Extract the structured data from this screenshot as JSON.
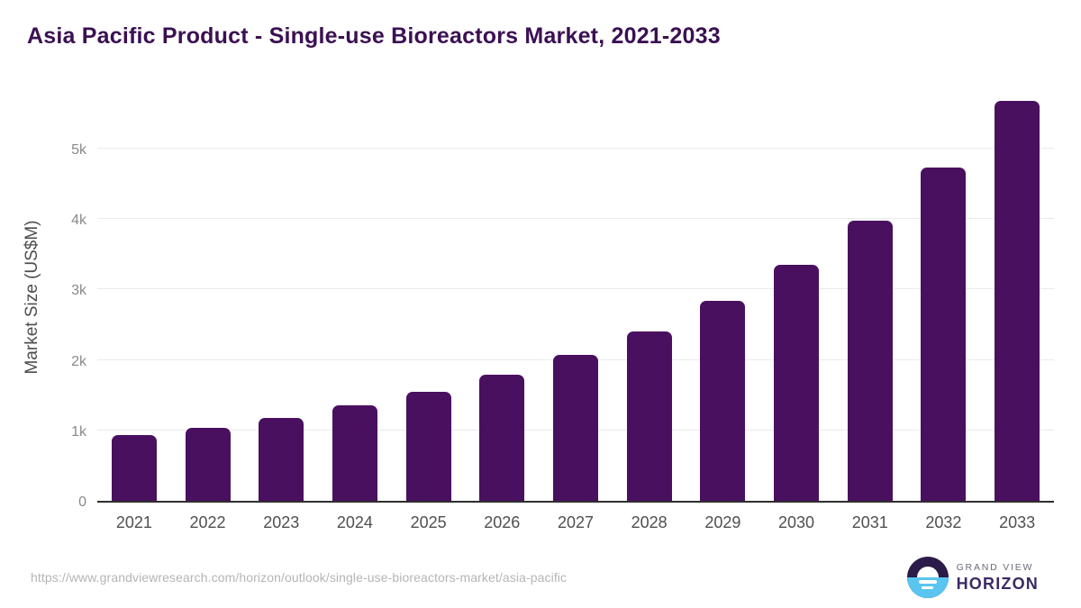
{
  "page": {
    "title": "Asia Pacific Product - Single-use Bioreactors Market, 2021-2033",
    "footer": {
      "source_url": "https://www.grandviewresearch.com/horizon/outlook/single-use-bioreactors-market/asia-pacific",
      "logo_line1": "GRAND VIEW",
      "logo_line2": "HORIZON"
    }
  },
  "chart_data": {
    "type": "bar",
    "title": "Asia Pacific Product - Single-use Bioreactors Market, 2021-2033",
    "categories": [
      "2021",
      "2022",
      "2023",
      "2024",
      "2025",
      "2026",
      "2027",
      "2028",
      "2029",
      "2030",
      "2031",
      "2032",
      "2033"
    ],
    "values": [
      930,
      1040,
      1180,
      1350,
      1550,
      1790,
      2070,
      2400,
      2840,
      3350,
      3970,
      4730,
      5680
    ],
    "xlabel": "",
    "ylabel": "Market Size (US$M)",
    "ylim": [
      0,
      5830
    ],
    "yticks": [
      {
        "value": 0,
        "label": "0"
      },
      {
        "value": 1000,
        "label": "1k"
      },
      {
        "value": 2000,
        "label": "2k"
      },
      {
        "value": 3000,
        "label": "3k"
      },
      {
        "value": 4000,
        "label": "4k"
      },
      {
        "value": 5000,
        "label": "5k"
      }
    ],
    "grid": true,
    "legend": false,
    "bar_color": "#4a1060"
  },
  "colors": {
    "title_text": "#3b1053",
    "bar": "#4a1060",
    "gridline": "#ebebeb",
    "baseline": "#2e2e2e",
    "x_label_text": "#4f4f4f",
    "y_tick_text": "#8a8a8a",
    "y_axis_title_text": "#4d4d4d",
    "url_text": "#b5b5b5",
    "logo_dark": "#2b1b48",
    "logo_blue": "#59c5f0",
    "logo_line1_text": "#6f6a78",
    "logo_line2_text": "#3b2a63"
  }
}
